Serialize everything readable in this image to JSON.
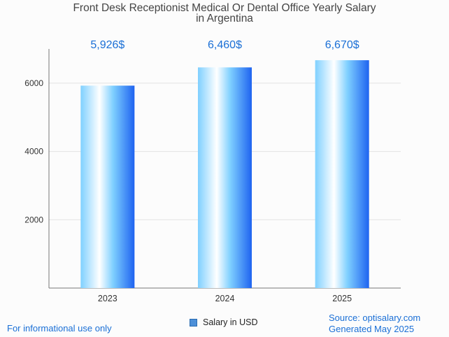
{
  "title_line1": "Front Desk Receptionist Medical Or Dental Office Yearly Salary",
  "title_line2": "in Argentina",
  "footer_left": "For informational use only",
  "source_line1": "Source: optisalary.com",
  "source_line2": "Generated May 2025",
  "colors": {
    "bar_light": "#ffffff",
    "bar_mid": "#7fd0ff",
    "bar_dark": "#1e63f0",
    "value_label": "#1a6fd6",
    "axis": "#777777",
    "grid": "#e2e2e2"
  },
  "chart_data": {
    "type": "bar",
    "title": "Front Desk Receptionist Medical Or Dental Office Yearly Salary in Argentina",
    "categories": [
      "2023",
      "2024",
      "2025"
    ],
    "series": [
      {
        "name": "Salary in USD",
        "values": [
          5926,
          6460,
          6670
        ]
      }
    ],
    "value_labels": [
      "5,926$",
      "6,460$",
      "6,670$"
    ],
    "y_ticks": [
      2000,
      4000,
      6000
    ],
    "ylim": [
      0,
      7000
    ],
    "xlabel": "",
    "ylabel": "",
    "grid": true,
    "legend": "bottom-center"
  }
}
